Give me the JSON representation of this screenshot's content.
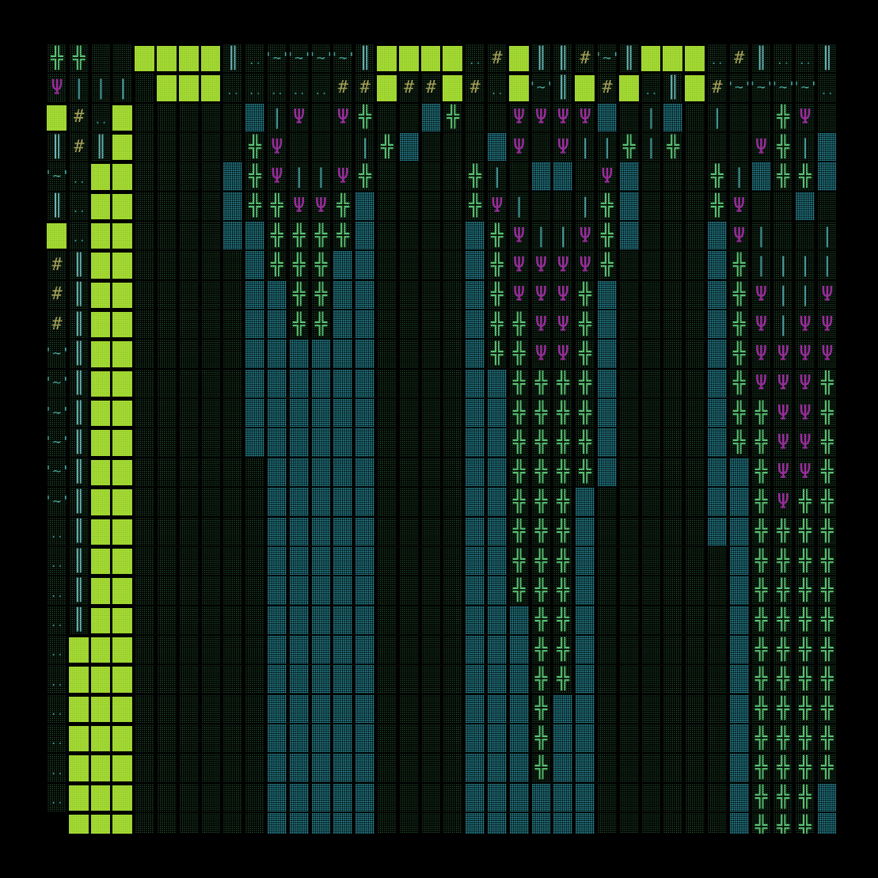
{
  "colors": {
    "background": "#000000",
    "moss": "#2f6a3e",
    "water": "#2d9aa8",
    "grass": "#8fcb2a",
    "tree": "#5fce7a",
    "plant": "#b01fb0",
    "wall": "#b8a85a"
  },
  "legend": {
    "D": "dark-moss-tile",
    "T": "teal-water-tile",
    "L": "lime-grass-tile",
    "C": "tree-glyph",
    "Y": "plant-glyph",
    "B": "bar-glyph",
    "P": "pipe-glyph",
    "H": "wall-hash-glyph",
    "W": "wave-glyph",
    "o": "dots-glyph",
    "_": "empty"
  },
  "glyphs": {
    "C": "╬",
    "Y": "Ψ",
    "B": "║",
    "P": "|",
    "H": "#",
    "W": "'~'",
    "o": ".."
  },
  "map_rows": [
    "CCDDLLLLBoWWWWBLLLLoHLBBHWBLLLoHBooBH_",
    "YPPPDLLLoooooHHLHHLHoLWBLHLoBLHWWWWoBB",
    "LHoLDDDDDTPYDYCDDTCDDYYYYTDPTDPDDCYDTDPT",
    "BHBLDDDDDCYDDDPCTDDDTYDYPPCPCDDDYCPTDTP",
    "WoLLDDDDTCYPPYCDDDDCPDTTDYTDDDCPTCCTP_",
    "BoLLDDDDTCCYYCTDDDDCYPDDPCTDDDCYDDTDY_",
    "LoLLDDDDTTCCCCTDDDDTCYPPYCTDDDTYPDDPY_",
    "HBLLDDDDDTCCCTTDDDDTCYYYYCDDDDTCPPPPY_",
    "HBLLDDDDDTTCCTTDDDDTCYYYCTDDDDTCYPPYY_",
    "HBLLDDDDDTTCCTTDDDDTCCYYCTDDDDTCYPYYY_",
    "WBLLDDDDDTTTTTTDDDDTCCYYCTDDDDTCYYYYY_",
    "WBLLDDDDDTTTTTTDDDDTTCCCCTDDDDTCYYYCC_",
    "WBLLDDDDDTTTTTTDDDDTTCCCCTDDDDTCCYYCT_",
    "WBLLDDDDDTTTTTTDDDDTTCCCCTDDDDTCCYYCT_",
    "WBLLDDDDDDTTTTTDDDDTTCCCCTDDDDTTCYYCT_",
    "WBLLDDDDDDTTTTTDDDDTTCCCTDDDDDTTCYCCT_",
    "oBLLDDDDDDTTTTTDDDDTTCCCTDDDDDTTCCCCT_",
    "oBLLDDDDDDTTTTTDDDDTTCCCTDDDDDDTCCCCT_",
    "oBLLDDDDDDTTTTTDDDDTTCCCTDDDDDDTCCCCT_",
    "oBLLDDDDDDTTTTTDDDDTTTCCTDDDDDDTCCCCT_",
    "oLLLDDDDDDTTTTTDDDDTTTCCTDDDDDDTCCCCT_",
    "oLLLDDDDDDTTTTTDDDDTTTCCTDDDDDDTCCCCT_",
    "oLLLDDDDDDTTTTTDDDDTTTCTTDDDDDDTCCCCT_",
    "oLLLDDDDDDTTTTTDDDDTTTCTTDDDDDDTCCCCT_",
    "oLLLDDDDDDTTTTTDDDDTTTCTTDDDDDDTCCCCT_",
    "oLLLDDDDDDTTTTTDDDDTTTTTTDDDDDDTCCCTT_",
    "_LLLDDDDDDTTTTTDDDDTTTTTTDDDDDDTCCCTT_"
  ]
}
